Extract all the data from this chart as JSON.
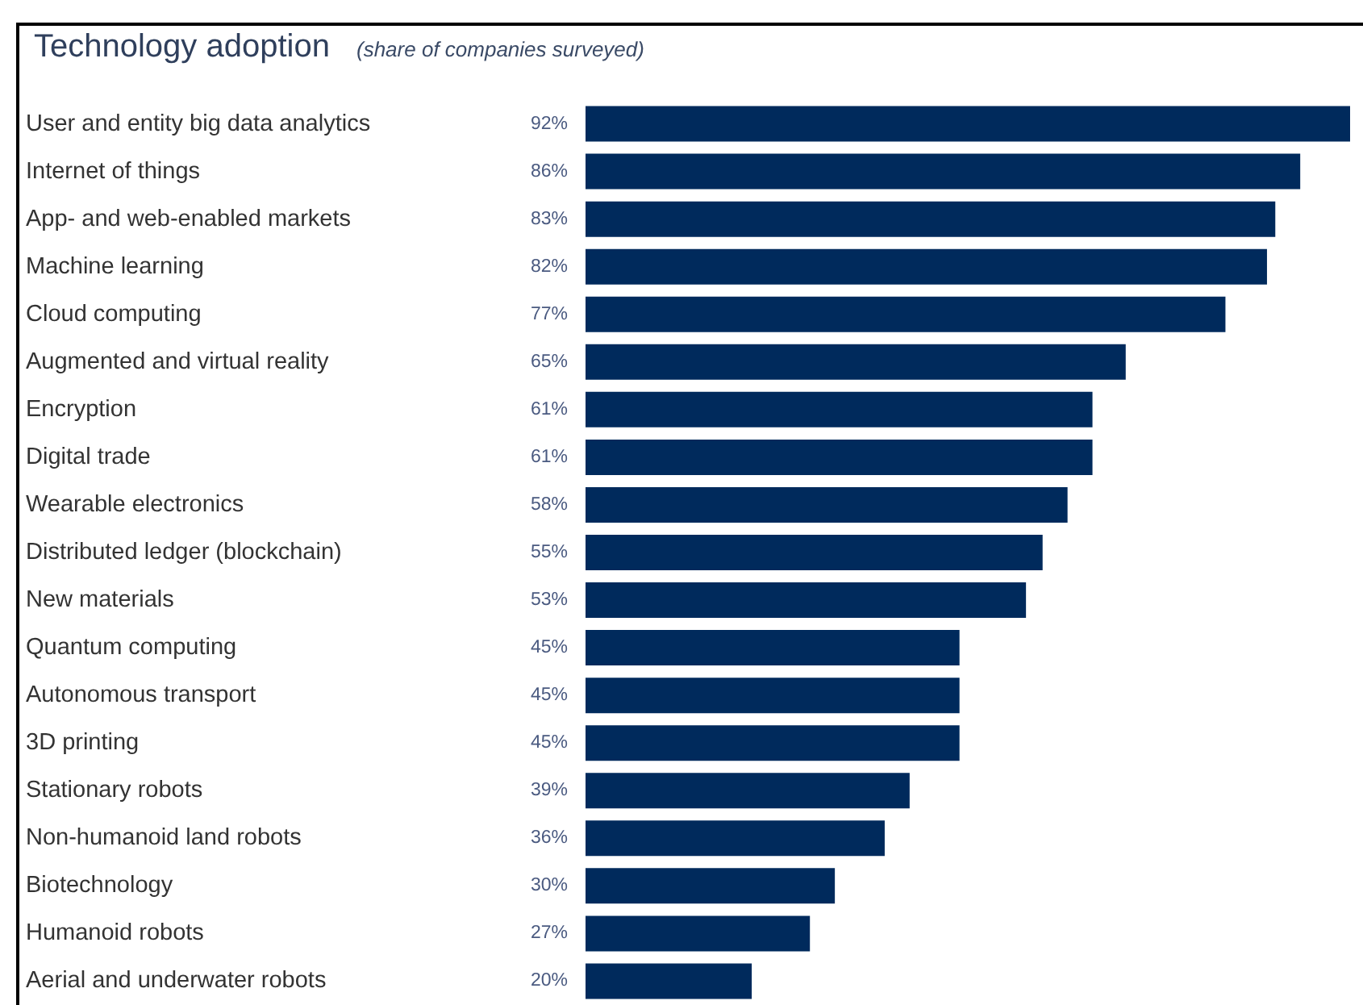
{
  "chart_data": {
    "type": "bar",
    "orientation": "horizontal",
    "relative": false,
    "title": "Technology adoption",
    "subtitle": "(share of companies surveyed)",
    "categories": [
      "User and entity big data analytics",
      "Internet of things",
      "App- and web-enabled markets",
      "Machine learning",
      "Cloud computing",
      "Augmented and virtual reality",
      "Encryption",
      "Digital trade",
      "Wearable electronics",
      "Distributed ledger (blockchain)",
      "New materials",
      "Quantum computing",
      "Autonomous transport",
      "3D printing",
      "Stationary robots",
      "Non-humanoid land robots",
      "Biotechnology",
      "Humanoid robots",
      "Aerial and underwater robots"
    ],
    "values": [
      92,
      86,
      83,
      82,
      77,
      65,
      61,
      61,
      58,
      55,
      53,
      45,
      45,
      45,
      39,
      36,
      30,
      27,
      20
    ],
    "value_labels": [
      "92%",
      "86%",
      "83%",
      "82%",
      "77%",
      "65%",
      "61%",
      "61%",
      "58%",
      "55%",
      "53%",
      "45%",
      "45%",
      "45%",
      "39%",
      "36%",
      "30%",
      "27%",
      "20%"
    ],
    "color": "#002a5c"
  }
}
